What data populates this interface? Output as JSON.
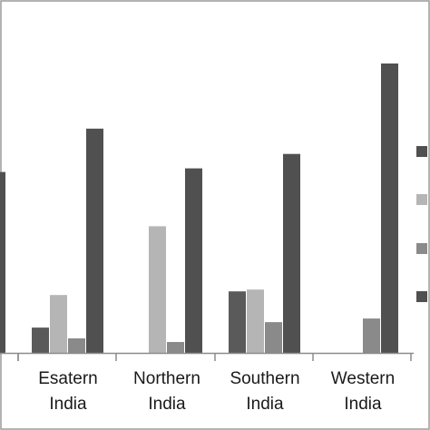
{
  "chart_data": {
    "type": "bar",
    "categories": [
      [
        "",
        ""
      ],
      [
        "Esatern",
        "India"
      ],
      [
        "Northern",
        "India"
      ],
      [
        "Southern",
        "India"
      ],
      [
        "Western",
        "India"
      ]
    ],
    "series": [
      {
        "color": "#5a5a5a",
        "values": [
          null,
          7,
          0,
          17,
          0
        ]
      },
      {
        "color": "#b5b5b5",
        "values": [
          null,
          16,
          35,
          17.5,
          0
        ]
      },
      {
        "color": "#8a8a8a",
        "values": [
          null,
          4,
          3,
          8.5,
          9.5
        ]
      },
      {
        "color": "#505050",
        "values": [
          50,
          62,
          51,
          55,
          80
        ]
      }
    ],
    "ylim": [
      0,
      82
    ],
    "grid": false,
    "legend": "right",
    "legend_markers": [
      "#505050",
      "#b5b5b5",
      "#8a8a8a",
      "#505050"
    ],
    "frame_color": "#9a9a9a"
  }
}
